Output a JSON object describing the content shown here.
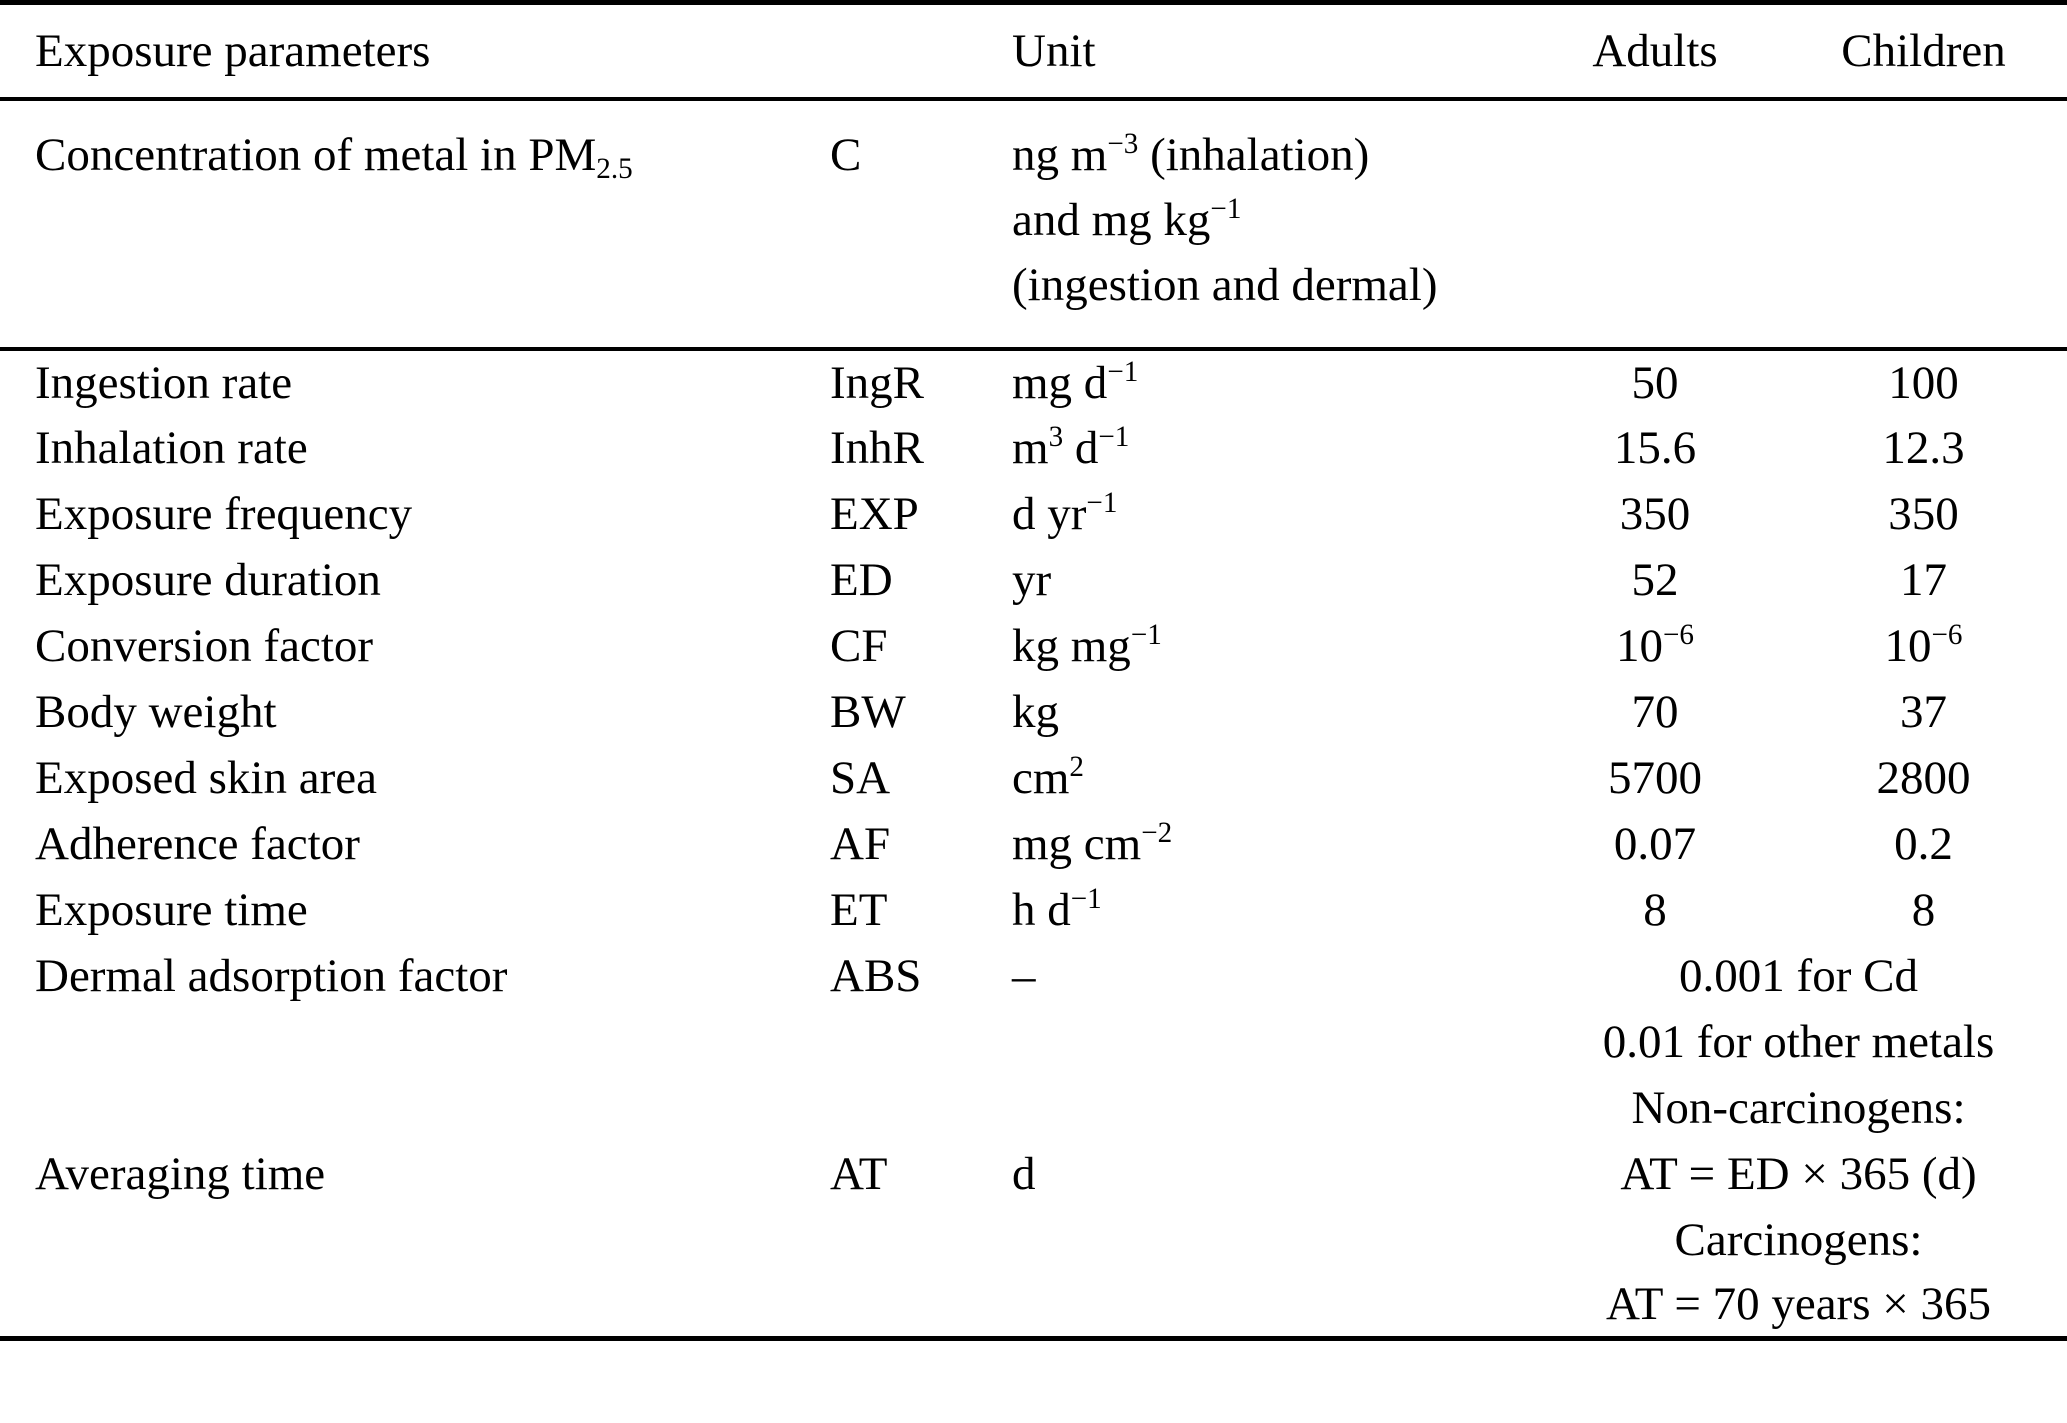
{
  "table": {
    "header": {
      "param": "Exposure parameters",
      "symbol": "",
      "unit": "Unit",
      "adults": "Adults",
      "children": "Children"
    },
    "rows": [
      {
        "tall": true,
        "param": [
          {
            "t": "Concentration of metal in PM"
          },
          {
            "sub": "2.5"
          }
        ],
        "symbol": "C",
        "unit_lines": [
          [
            {
              "t": "ng m"
            },
            {
              "sup": "−3"
            },
            {
              "t": " (inhalation)"
            }
          ],
          [
            {
              "t": "and mg kg"
            },
            {
              "sup": "−1"
            }
          ],
          [
            {
              "t": "(ingestion and dermal)"
            }
          ]
        ],
        "adults": "",
        "children": ""
      },
      {
        "param": "Ingestion rate",
        "symbol": "IngR",
        "unit": [
          {
            "t": "mg d"
          },
          {
            "sup": "−1"
          }
        ],
        "adults": "50",
        "children": "100"
      },
      {
        "param": "Inhalation rate",
        "symbol": "InhR",
        "unit": [
          {
            "t": "m"
          },
          {
            "sup": "3"
          },
          {
            "t": " d"
          },
          {
            "sup": "−1"
          }
        ],
        "adults": "15.6",
        "children": "12.3"
      },
      {
        "param": "Exposure frequency",
        "symbol": "EXP",
        "unit": [
          {
            "t": "d yr"
          },
          {
            "sup": "−1"
          }
        ],
        "adults": "350",
        "children": "350"
      },
      {
        "param": "Exposure duration",
        "symbol": "ED",
        "unit": "yr",
        "adults": "52",
        "children": "17"
      },
      {
        "param": "Conversion factor",
        "symbol": "CF",
        "unit": [
          {
            "t": "kg mg"
          },
          {
            "sup": "−1"
          }
        ],
        "adults": [
          {
            "t": "10"
          },
          {
            "sup": "−6"
          }
        ],
        "children": [
          {
            "t": "10"
          },
          {
            "sup": "−6"
          }
        ]
      },
      {
        "param": "Body weight",
        "symbol": "BW",
        "unit": "kg",
        "adults": "70",
        "children": "37"
      },
      {
        "param": "Exposed skin area",
        "symbol": "SA",
        "unit": [
          {
            "t": "cm"
          },
          {
            "sup": "2"
          }
        ],
        "adults": "5700",
        "children": "2800"
      },
      {
        "param": "Adherence factor",
        "symbol": "AF",
        "unit": [
          {
            "t": "mg cm"
          },
          {
            "sup": "−2"
          }
        ],
        "adults": "0.07",
        "children": "0.2"
      },
      {
        "param": "Exposure time",
        "symbol": "ET",
        "unit": [
          {
            "t": "h d"
          },
          {
            "sup": "−1"
          }
        ],
        "adults": "8",
        "children": "8"
      },
      {
        "param": "Dermal adsorption factor",
        "symbol": "ABS",
        "unit": "–",
        "span": "0.001 for Cd"
      },
      {
        "param": "",
        "symbol": "",
        "unit": "",
        "span": "0.01 for other metals"
      },
      {
        "param": "",
        "symbol": "",
        "unit": "",
        "span": "Non-carcinogens:"
      },
      {
        "param": "Averaging time",
        "symbol": "AT",
        "unit": "d",
        "span": "AT = ED × 365 (d)"
      },
      {
        "param": "",
        "symbol": "",
        "unit": "",
        "span": "Carcinogens:"
      },
      {
        "param": "",
        "symbol": "",
        "unit": "",
        "span": "AT = 70 years × 365"
      }
    ]
  }
}
